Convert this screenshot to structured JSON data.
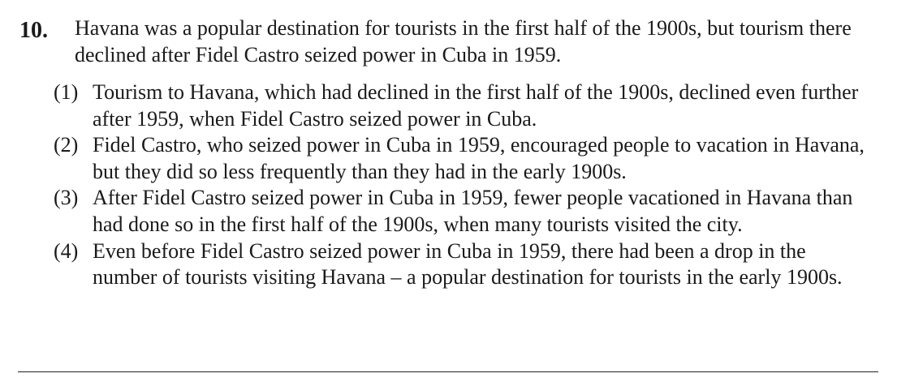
{
  "question": {
    "number": "10.",
    "stem": "Havana was a popular destination for tourists in the first half of the 1900s, but tourism there declined after Fidel Castro seized power in Cuba in 1959.",
    "choices": [
      {
        "label": "(1)",
        "text": "Tourism to Havana, which had declined in the first half of the 1900s, declined even further after 1959, when Fidel Castro seized power in Cuba."
      },
      {
        "label": "(2)",
        "text": "Fidel Castro, who seized power in Cuba in 1959, encouraged people to vacation in Havana, but they did so less frequently than they had in the early 1900s."
      },
      {
        "label": "(3)",
        "text": "After Fidel Castro seized power in Cuba in 1959, fewer people vacationed in Havana than had done so in the first half of the 1900s, when many tourists visited the city."
      },
      {
        "label": "(4)",
        "text": "Even before Fidel Castro seized power in Cuba in 1959, there had been a drop in the number of tourists visiting Havana – a popular destination for tourists in the early 1900s."
      }
    ]
  }
}
